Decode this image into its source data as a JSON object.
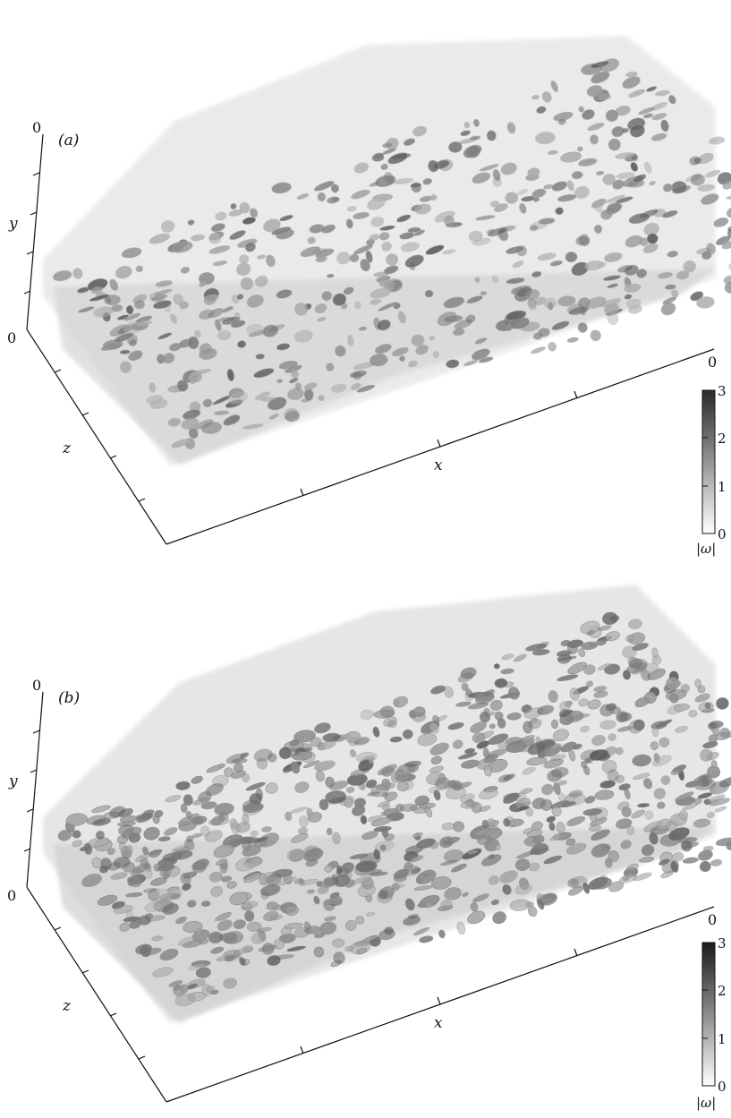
{
  "panels": [
    {
      "label": "(a)",
      "axes": {
        "x_label": "x",
        "y_label": "y",
        "z_label": "z",
        "y_top": "0",
        "y_bottom": "0",
        "x_end": "0"
      },
      "colorbar": {
        "label": "|ω|",
        "ticks": [
          "3",
          "2",
          "1",
          "0"
        ]
      },
      "mean_shade": "#a9a9a9"
    },
    {
      "label": "(b)",
      "axes": {
        "x_label": "x",
        "y_label": "y",
        "z_label": "z",
        "y_top": "0",
        "y_bottom": "0",
        "x_end": "0"
      },
      "colorbar": {
        "label": "|ω|",
        "ticks": [
          "3",
          "2",
          "1",
          "0"
        ]
      },
      "mean_shade": "#7c7c7c"
    }
  ]
}
